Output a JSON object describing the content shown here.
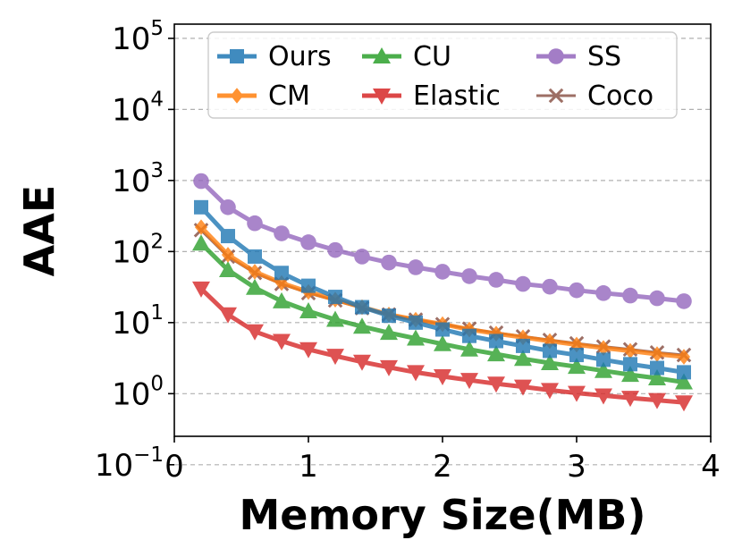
{
  "chart_data": {
    "type": "line",
    "title": "",
    "xlabel": "Memory Size(MB)",
    "ylabel": "AAE",
    "xlim": [
      0,
      4
    ],
    "ylim_log10": [
      -0.6,
      5.2
    ],
    "y_scale": "log",
    "x_ticks": [
      0,
      1,
      2,
      3,
      4
    ],
    "y_ticks": [
      {
        "base": "10",
        "exp": "−1",
        "value": 0.1
      },
      {
        "base": "10",
        "exp": "0",
        "value": 1
      },
      {
        "base": "10",
        "exp": "1",
        "value": 10
      },
      {
        "base": "10",
        "exp": "2",
        "value": 100
      },
      {
        "base": "10",
        "exp": "3",
        "value": 1000
      },
      {
        "base": "10",
        "exp": "4",
        "value": 10000
      },
      {
        "base": "10",
        "exp": "5",
        "value": 100000
      }
    ],
    "grid": "y-dashed",
    "legend_position": "top",
    "x": [
      0.2,
      0.4,
      0.6,
      0.8,
      1.0,
      1.2,
      1.4,
      1.6,
      1.8,
      2.0,
      2.2,
      2.4,
      2.6,
      2.8,
      3.0,
      3.2,
      3.4,
      3.6,
      3.8
    ],
    "series": [
      {
        "name": "Ours",
        "color": "#1f77b4",
        "marker": "square",
        "values": [
          420,
          165,
          85,
          50,
          33,
          23,
          16.5,
          12.5,
          10,
          8,
          6.5,
          5.5,
          4.7,
          4.0,
          3.5,
          3.0,
          2.6,
          2.3,
          2.0
        ]
      },
      {
        "name": "CM",
        "color": "#ff7f0e",
        "marker": "diamond",
        "values": [
          220,
          90,
          52,
          36,
          27,
          21,
          16.5,
          13,
          11,
          9.5,
          8,
          7,
          6.2,
          5.5,
          4.9,
          4.4,
          4.0,
          3.6,
          3.3
        ]
      },
      {
        "name": "CU",
        "color": "#2ca02c",
        "marker": "triangle-up",
        "values": [
          130,
          55,
          31,
          20,
          14.5,
          11,
          8.8,
          7.2,
          6,
          5,
          4.2,
          3.6,
          3.1,
          2.7,
          2.4,
          2.1,
          1.85,
          1.65,
          1.45
        ]
      },
      {
        "name": "Elastic",
        "color": "#d62728",
        "marker": "triangle-down",
        "values": [
          30,
          13,
          7.5,
          5.5,
          4.2,
          3.4,
          2.8,
          2.35,
          2.0,
          1.75,
          1.55,
          1.38,
          1.25,
          1.12,
          1.02,
          0.94,
          0.87,
          0.81,
          0.75
        ]
      },
      {
        "name": "SS",
        "color": "#9467bd",
        "marker": "circle",
        "values": [
          980,
          420,
          250,
          180,
          135,
          105,
          85,
          70,
          60,
          52,
          45,
          40,
          35,
          32,
          28.5,
          26,
          24,
          22,
          20
        ]
      },
      {
        "name": "Coco",
        "color": "#8c564b",
        "marker": "x",
        "values": [
          200,
          85,
          50,
          35,
          26,
          20.5,
          16,
          13,
          11,
          9.5,
          8.2,
          7.2,
          6.4,
          5.7,
          5.1,
          4.6,
          4.2,
          3.8,
          3.5
        ]
      }
    ]
  }
}
